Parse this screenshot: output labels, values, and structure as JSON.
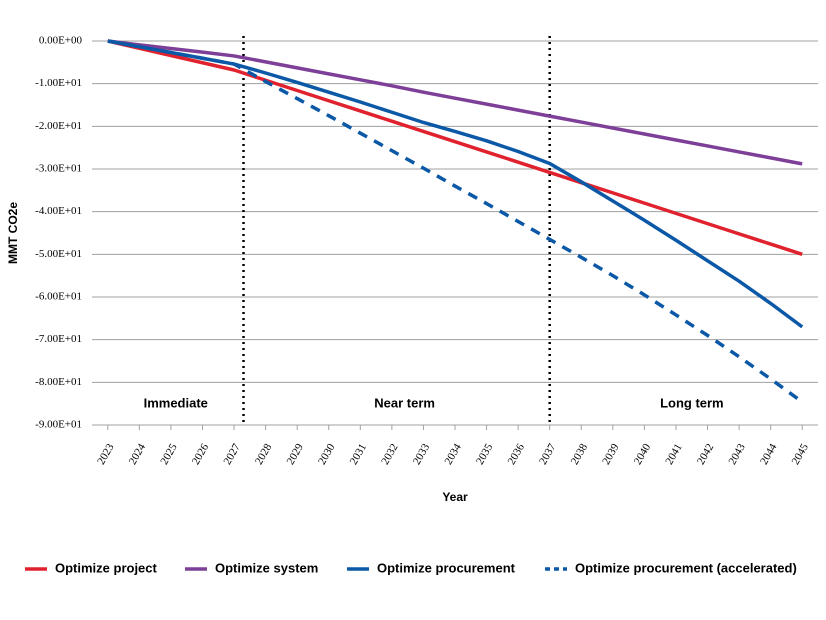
{
  "chart_data": {
    "type": "line",
    "y_label": "MMT CO2e",
    "x_label": "Year",
    "x": [
      2023,
      2024,
      2025,
      2026,
      2027,
      2028,
      2029,
      2030,
      2031,
      2032,
      2033,
      2034,
      2035,
      2036,
      2037,
      2038,
      2039,
      2040,
      2041,
      2042,
      2043,
      2044,
      2045
    ],
    "xlim": [
      2022.5,
      2045.5
    ],
    "xticks": [
      2023,
      2024,
      2025,
      2026,
      2027,
      2028,
      2029,
      2030,
      2031,
      2032,
      2033,
      2034,
      2035,
      2036,
      2037,
      2038,
      2039,
      2040,
      2041,
      2042,
      2043,
      2044,
      2045
    ],
    "ylim": [
      -90,
      0
    ],
    "yticks": [
      {
        "value": 0,
        "label": "0.00E+00"
      },
      {
        "value": -10,
        "label": "-1.00E+01"
      },
      {
        "value": -20,
        "label": "-2.00E+01"
      },
      {
        "value": -30,
        "label": "-3.00E+01"
      },
      {
        "value": -40,
        "label": "-4.00E+01"
      },
      {
        "value": -50,
        "label": "-5.00E+01"
      },
      {
        "value": -60,
        "label": "-6.00E+01"
      },
      {
        "value": -70,
        "label": "-7.00E+01"
      },
      {
        "value": -80,
        "label": "-8.00E+01"
      },
      {
        "value": -90,
        "label": "-9.00E+01"
      }
    ],
    "grid": true,
    "dividers": [
      2027.3,
      2037
    ],
    "regions": [
      "Immediate",
      "Near term",
      "Long term"
    ],
    "series": [
      {
        "name": "Optimize project",
        "color": "#e0222e",
        "dashed": false,
        "values": [
          0,
          -1.7,
          -3.4,
          -5.1,
          -6.8,
          -9.2,
          -11.6,
          -14.0,
          -16.4,
          -18.8,
          -21.2,
          -23.6,
          -26.0,
          -28.4,
          -30.8,
          -33.2,
          -35.6,
          -38.0,
          -40.4,
          -42.8,
          -45.2,
          -47.6,
          -50.0
        ]
      },
      {
        "name": "Optimize system",
        "color": "#7d3f98",
        "dashed": false,
        "values": [
          0,
          -0.9,
          -1.75,
          -2.6,
          -3.5,
          -4.9,
          -6.3,
          -7.7,
          -9.1,
          -10.5,
          -12.0,
          -13.4,
          -14.8,
          -16.2,
          -17.6,
          -19.0,
          -20.4,
          -21.8,
          -23.2,
          -24.6,
          -26.0,
          -27.4,
          -28.8
        ]
      },
      {
        "name": "Optimize procurement",
        "color": "#0a58a6",
        "dashed": false,
        "values": [
          0,
          -1.35,
          -2.7,
          -4.05,
          -5.4,
          -7.5,
          -9.7,
          -12.0,
          -14.3,
          -16.7,
          -19.1,
          -21.2,
          -23.4,
          -25.9,
          -28.7,
          -33.0,
          -37.5,
          -42.0,
          -46.7,
          -51.5,
          -56.3,
          -61.5,
          -67.0
        ]
      },
      {
        "name": "Optimize procurement (accelerated)",
        "color": "#0a58a6",
        "dashed": true,
        "values": [
          0,
          -1.35,
          -2.7,
          -4.05,
          -5.4,
          -9.5,
          -13.5,
          -17.5,
          -21.6,
          -25.7,
          -29.8,
          -34.0,
          -38.1,
          -42.3,
          -46.5,
          -50.7,
          -55.0,
          -59.5,
          -64.2,
          -69.0,
          -74.0,
          -79.2,
          -84.6
        ]
      }
    ]
  }
}
